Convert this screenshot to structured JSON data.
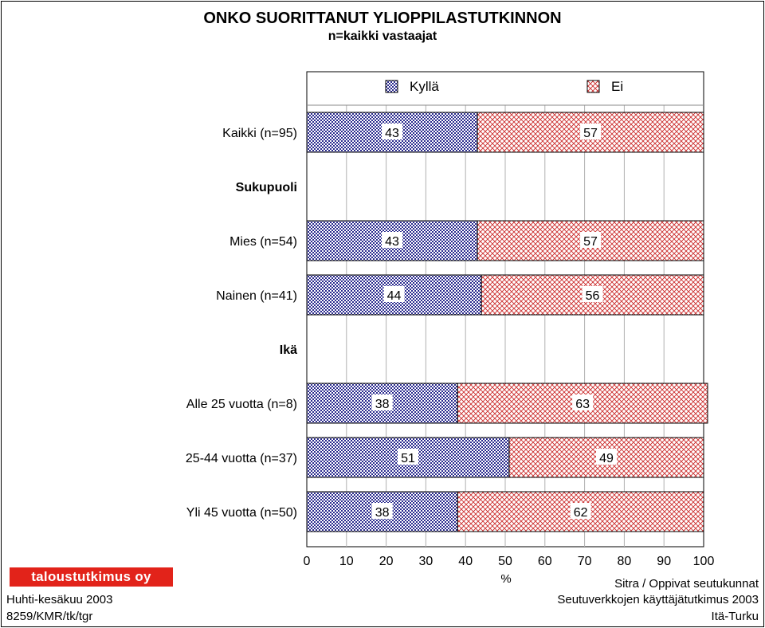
{
  "title": "ONKO SUORITTANUT YLIOPPILASTUTKINNON",
  "subtitle": "n=kaikki vastaajat",
  "logo_text": "taloustutkimus oy",
  "footer": {
    "left": [
      "Huhti-kesäkuu 2003",
      "8259/KMR/tk/tgr"
    ],
    "right": [
      "Sitra / Oppivat seutukunnat",
      "Seutuverkkojen käyttäjätutkimus 2003",
      "Itä-Turku"
    ]
  },
  "colors": {
    "kylla": "#2b2b8f",
    "ei": "#cc2b2b",
    "grid": "#b0b0b0"
  },
  "chart_data": {
    "type": "bar",
    "orientation": "horizontal",
    "stacked": true,
    "xlabel": "%",
    "xlim": [
      0,
      100
    ],
    "xticks": [
      0,
      10,
      20,
      30,
      40,
      50,
      60,
      70,
      80,
      90,
      100
    ],
    "legend": [
      "Kyllä",
      "Ei"
    ],
    "legend_position": "top",
    "grid": true,
    "rows": [
      {
        "label": "Kaikki (n=95)",
        "kind": "data",
        "values": [
          43,
          57
        ]
      },
      {
        "label": "Sukupuoli",
        "kind": "header"
      },
      {
        "label": "Mies (n=54)",
        "kind": "data",
        "values": [
          43,
          57
        ]
      },
      {
        "label": "Nainen (n=41)",
        "kind": "data",
        "values": [
          44,
          56
        ]
      },
      {
        "label": "Ikä",
        "kind": "header"
      },
      {
        "label": "Alle 25 vuotta (n=8)",
        "kind": "data",
        "values": [
          38,
          63
        ]
      },
      {
        "label": "25-44 vuotta (n=37)",
        "kind": "data",
        "values": [
          51,
          49
        ]
      },
      {
        "label": "Yli 45 vuotta (n=50)",
        "kind": "data",
        "values": [
          38,
          62
        ]
      }
    ],
    "series": [
      {
        "name": "Kyllä",
        "values": [
          43,
          43,
          44,
          38,
          51,
          38
        ]
      },
      {
        "name": "Ei",
        "values": [
          57,
          57,
          56,
          63,
          49,
          62
        ]
      }
    ]
  }
}
